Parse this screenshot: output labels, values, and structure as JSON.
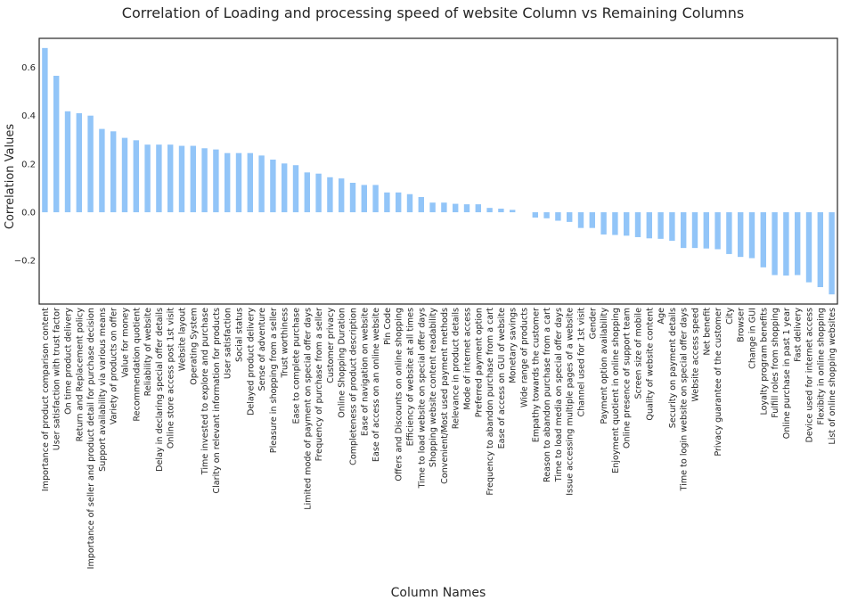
{
  "chart_data": {
    "type": "bar",
    "title": "Correlation of Loading and processing speed of website Column vs Remaining Columns",
    "xlabel": "Column Names",
    "ylabel": "Correlation Values",
    "ylim": [
      -0.38,
      0.72
    ],
    "yticks": [
      -0.2,
      0.0,
      0.2,
      0.4,
      0.6
    ],
    "ytick_labels": [
      "−0.2",
      "0.0",
      "0.2",
      "0.4",
      "0.6"
    ],
    "grid": false,
    "bar_color": "#92c5f8",
    "categories": [
      "Importance of product comparison content",
      "User satisfaction with trust factor",
      "On time product delivery",
      "Return and Replacement policy",
      "Importance of seller and product detail for purchase decision",
      "Support availability via various means",
      "Variety of products on offer",
      "Value for money",
      "Recommendation quotient",
      "Reliability of website",
      "Delay in declaring special offer details",
      "Online store access post 1st visit",
      "Website layout",
      "Operating System",
      "Time invested to explore and purchase",
      "Clarity on relevant information for products",
      "User satisfaction",
      "Social status",
      "Delayed product delivery",
      "Sense of adventure",
      "Pleasure in shopping from a seller",
      "Trust worthiness",
      "Ease to complete purchase",
      "Limited mode of payment on special offer days",
      "Frequency of purchase from a seller",
      "Customer privacy",
      "Online Shopping Duration",
      "Completeness of product description",
      "Ease of navigation on website",
      "Ease of access on an online website",
      "Pin Code",
      "Offers and Discounts on online shopping",
      "Efficiency of website at all times",
      "Time to load website on special offer days",
      "Shopping website content readability",
      "Convenient/Most used payment methods",
      "Relevance in product details",
      "Mode of internet access",
      "Preferred payment option",
      "Frequency to abandon purchase from a cart",
      "Ease of access on GUI of website",
      "Monetary savings",
      "Wide range of products",
      "Empathy towards the customer",
      "Reason to abandon purchase from a cart",
      "Time to load media on special offer days",
      "Issue accessing multiple pages of a website",
      "Channel used for 1st visit",
      "Gender",
      "Payment option availability",
      "Enjoyment quotient in online shopping",
      "Online presence of support team",
      "Screen size of mobile",
      "Quality of website content",
      "Age",
      "Security on payment details",
      "Time to login website on special offer days",
      "Website access speed",
      "Net benefit",
      "Privacy guarantee of the customer",
      "City",
      "Browser",
      "Change in GUI",
      "Loyalty program benefits",
      "Fulfill roles from shopping",
      "Online purchase in past 1 year",
      "Fast delivery",
      "Device used for internet access",
      "Flexibity in online shopping",
      "List of online shopping websites"
    ],
    "values": [
      0.68,
      0.565,
      0.418,
      0.41,
      0.4,
      0.345,
      0.335,
      0.308,
      0.298,
      0.28,
      0.28,
      0.28,
      0.275,
      0.275,
      0.265,
      0.26,
      0.245,
      0.245,
      0.245,
      0.235,
      0.218,
      0.202,
      0.195,
      0.165,
      0.16,
      0.145,
      0.14,
      0.122,
      0.113,
      0.113,
      0.082,
      0.082,
      0.075,
      0.063,
      0.04,
      0.04,
      0.035,
      0.033,
      0.033,
      0.018,
      0.015,
      0.01,
      0.0,
      -0.022,
      -0.025,
      -0.035,
      -0.04,
      -0.065,
      -0.065,
      -0.092,
      -0.094,
      -0.097,
      -0.103,
      -0.108,
      -0.11,
      -0.118,
      -0.148,
      -0.148,
      -0.15,
      -0.153,
      -0.173,
      -0.185,
      -0.19,
      -0.228,
      -0.26,
      -0.262,
      -0.26,
      -0.29,
      -0.31,
      -0.34
    ]
  }
}
